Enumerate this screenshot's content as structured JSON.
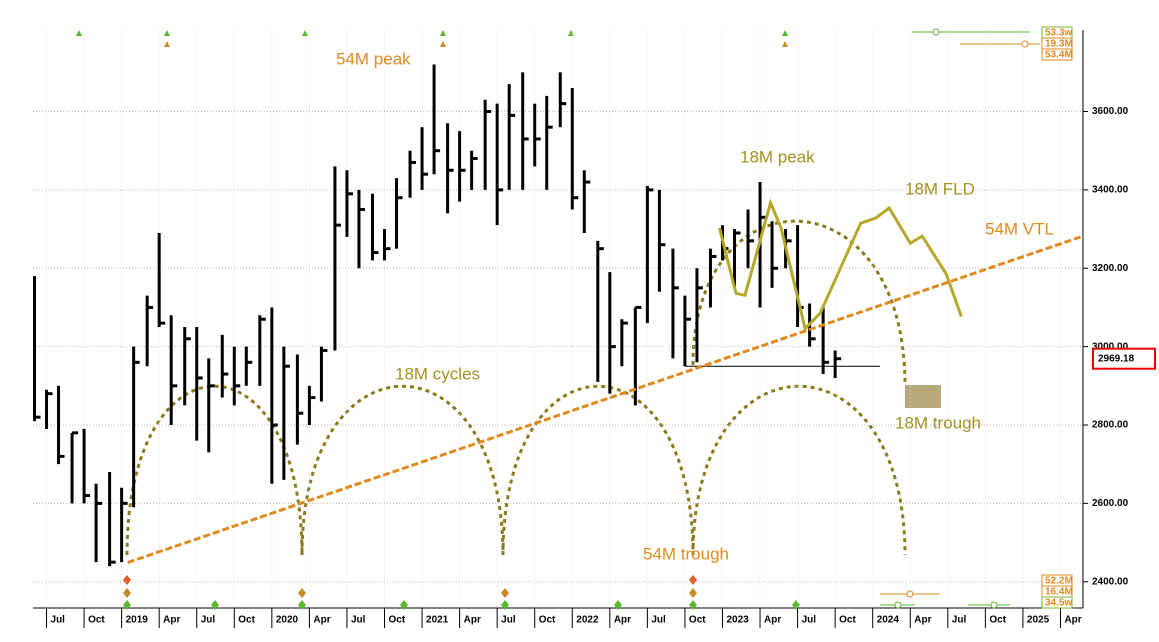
{
  "chart_data": {
    "type": "ohlc",
    "x": [
      2018.42,
      2018.5,
      2018.58,
      2018.67,
      2018.75,
      2018.83,
      2018.92,
      2019.0,
      2019.08,
      2019.17,
      2019.25,
      2019.33,
      2019.42,
      2019.5,
      2019.58,
      2019.67,
      2019.75,
      2019.83,
      2019.92,
      2020.0,
      2020.08,
      2020.17,
      2020.25,
      2020.33,
      2020.42,
      2020.5,
      2020.58,
      2020.67,
      2020.75,
      2020.83,
      2020.92,
      2021.0,
      2021.08,
      2021.17,
      2021.25,
      2021.33,
      2021.42,
      2021.5,
      2021.58,
      2021.67,
      2021.75,
      2021.83,
      2021.92,
      2022.0,
      2022.08,
      2022.17,
      2022.25,
      2022.33,
      2022.42,
      2022.5,
      2022.58,
      2022.67,
      2022.75,
      2022.83,
      2022.92,
      2023.0,
      2023.08,
      2023.17,
      2023.25,
      2023.33,
      2023.42,
      2023.5,
      2023.58,
      2023.67,
      2023.75
    ],
    "high": [
      3180,
      2890,
      2900,
      2780,
      2790,
      2650,
      2680,
      2640,
      3000,
      3130,
      3290,
      3080,
      3050,
      3050,
      2970,
      3030,
      3000,
      3000,
      3080,
      3100,
      3000,
      2980,
      2900,
      3000,
      3460,
      3450,
      3400,
      3390,
      3300,
      3430,
      3500,
      3560,
      3720,
      3570,
      3550,
      3500,
      3630,
      3620,
      3670,
      3700,
      3620,
      3640,
      3700,
      3660,
      3450,
      3270,
      3190,
      3070,
      3100,
      3410,
      3400,
      3250,
      3130,
      3200,
      3250,
      3310,
      3300,
      3350,
      3420,
      3320,
      3300,
      3310,
      3110,
      3100,
      2990
    ],
    "low": [
      2810,
      2790,
      2700,
      2600,
      2600,
      2450,
      2440,
      2450,
      2590,
      2950,
      3050,
      2800,
      2850,
      2760,
      2730,
      2870,
      2850,
      2900,
      2900,
      2650,
      2660,
      2750,
      2800,
      2860,
      2990,
      3280,
      3200,
      3220,
      3220,
      3250,
      3380,
      3400,
      3440,
      3340,
      3370,
      3400,
      3400,
      3310,
      3400,
      3400,
      3460,
      3400,
      3560,
      3350,
      3290,
      2910,
      2880,
      2950,
      2850,
      3060,
      3140,
      2970,
      2950,
      2960,
      3100,
      3220,
      3150,
      3200,
      3100,
      3150,
      3200,
      3050,
      3000,
      2930,
      2920
    ],
    "close": [
      2820,
      2880,
      2720,
      2780,
      2620,
      2600,
      2450,
      2600,
      2960,
      3100,
      3060,
      2900,
      3020,
      2920,
      2900,
      2930,
      2900,
      2960,
      3070,
      2800,
      2950,
      2830,
      2870,
      2990,
      3310,
      3390,
      3350,
      3240,
      3250,
      3380,
      3470,
      3440,
      3500,
      3450,
      3450,
      3480,
      3600,
      3400,
      3590,
      3530,
      3530,
      3560,
      3620,
      3380,
      3420,
      3250,
      3000,
      3060,
      3100,
      3400,
      3260,
      3150,
      3070,
      3150,
      3230,
      3250,
      3290,
      3270,
      3330,
      3200,
      3270,
      3100,
      3020,
      2960,
      2969.18
    ],
    "color": "#000000",
    "fld": {
      "x": [
        2022.98,
        2023.09,
        2023.15,
        2023.32,
        2023.39,
        2023.55,
        2023.65,
        2023.92,
        2024.02,
        2024.11,
        2024.25,
        2024.33,
        2024.49,
        2024.59
      ],
      "values": [
        3303,
        3136,
        3131,
        3367,
        3303,
        3046,
        3085,
        3315,
        3328,
        3354,
        3264,
        3282,
        3185,
        3077
      ],
      "color": "#b5a72a"
    },
    "vtl": {
      "x": [
        2019.04,
        2025.4
      ],
      "values": [
        2449,
        3282
      ],
      "color": "#e08a1e"
    },
    "annotations": [
      "54M peak",
      "18M peak",
      "18M FLD",
      "54M VTL",
      "18M cycles",
      "18M trough",
      "54M trough"
    ],
    "cycle_labels_top": [
      "53.3w",
      "19.3M",
      "53.4M"
    ],
    "cycle_labels_bottom": [
      "52.2M",
      "16.4M",
      "34.5w"
    ],
    "xlim": [
      2018.41,
      2025.4
    ],
    "ylim": [
      2333,
      3808
    ],
    "xticks": [
      {
        "value": 2018.5,
        "label": "Jul"
      },
      {
        "value": 2018.75,
        "label": "Oct"
      },
      2019,
      {
        "value": 2019.25,
        "label": "Apr"
      },
      {
        "value": 2019.5,
        "label": "Jul"
      },
      {
        "value": 2019.75,
        "label": "Oct"
      },
      2020,
      {
        "value": 2020.25,
        "label": "Apr"
      },
      {
        "value": 2020.5,
        "label": "Jul"
      },
      {
        "value": 2020.75,
        "label": "Oct"
      },
      2021,
      {
        "value": 2021.25,
        "label": "Apr"
      },
      {
        "value": 2021.5,
        "label": "Jul"
      },
      {
        "value": 2021.75,
        "label": "Oct"
      },
      2022,
      {
        "value": 2022.25,
        "label": "Apr"
      },
      {
        "value": 2022.5,
        "label": "Jul"
      },
      {
        "value": 2022.75,
        "label": "Oct"
      },
      2023,
      {
        "value": 2023.25,
        "label": "Apr"
      },
      {
        "value": 2023.5,
        "label": "Jul"
      },
      {
        "value": 2023.75,
        "label": "Oct"
      },
      2024,
      {
        "value": 2024.25,
        "label": "Apr"
      },
      {
        "value": 2024.5,
        "label": "Jul"
      },
      {
        "value": 2024.75,
        "label": "Oct"
      },
      2025,
      {
        "value": 2025.25,
        "label": "Apr"
      }
    ],
    "yticks": [
      {
        "value": 2400,
        "label": "2400.00"
      },
      {
        "value": 2600,
        "label": "2600.00"
      },
      {
        "value": 2800,
        "label": "2800.00"
      },
      {
        "value": 3000,
        "label": "3000.00"
      },
      {
        "value": 3200,
        "label": "3200.00"
      },
      {
        "value": 3400,
        "label": "3400.00"
      },
      {
        "value": 3600,
        "label": "3600.00"
      }
    ],
    "grid": true
  }
}
